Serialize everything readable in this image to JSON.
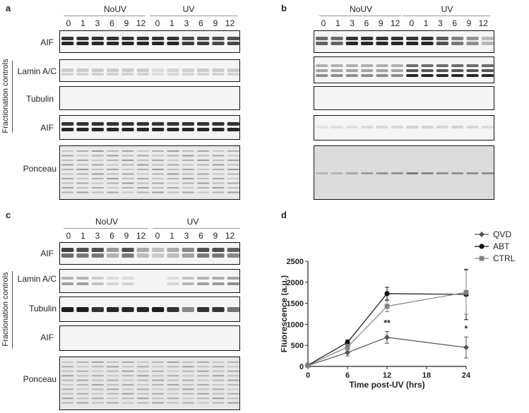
{
  "panels": {
    "a": {
      "label": "a",
      "group1": "NoUV",
      "group2": "UV",
      "lanes": [
        "0",
        "1",
        "3",
        "6",
        "9",
        "12",
        "0",
        "1",
        "3",
        "6",
        "9",
        "12"
      ],
      "rows": [
        "AIF",
        "Lamin A/C",
        "Tubulin",
        "AIF",
        "Ponceau"
      ]
    },
    "b": {
      "label": "b",
      "group1": "NoUV",
      "group2": "UV",
      "lanes": [
        "0",
        "1",
        "3",
        "6",
        "9",
        "12",
        "0",
        "1",
        "3",
        "6",
        "9",
        "12"
      ]
    },
    "c": {
      "label": "c",
      "group1": "NoUV",
      "group2": "UV",
      "lanes": [
        "0",
        "1",
        "3",
        "6",
        "9",
        "12",
        "0",
        "1",
        "3",
        "6",
        "9",
        "12"
      ],
      "rows": [
        "AIF",
        "Lamin A/C",
        "Tubulin",
        "AIF",
        "Ponceau"
      ]
    },
    "d": {
      "label": "d"
    }
  },
  "fractionation_label": "Fractionation controls",
  "chart_data": {
    "type": "line",
    "xlabel": "Time post-UV (hrs)",
    "ylabel": "Fluorescence (a.u.)",
    "xlim": [
      0,
      24
    ],
    "ylim": [
      0,
      2500
    ],
    "xticks": [
      "0",
      "6",
      "12",
      "18",
      "24"
    ],
    "yticks": [
      "0",
      "500",
      "1000",
      "1500",
      "2000",
      "2500"
    ],
    "x": [
      0,
      6,
      12,
      24
    ],
    "series": [
      {
        "name": "QVD",
        "values": [
          20,
          330,
          690,
          450
        ],
        "errors": [
          10,
          80,
          140,
          250
        ],
        "marker": "diamond",
        "color": "#555555"
      },
      {
        "name": "ABT",
        "values": [
          30,
          570,
          1730,
          1710
        ],
        "errors": [
          10,
          60,
          150,
          600
        ],
        "marker": "circle",
        "color": "#111111"
      },
      {
        "name": "CTRL",
        "values": [
          25,
          460,
          1430,
          1760
        ],
        "errors": [
          10,
          70,
          130,
          520
        ],
        "marker": "square",
        "color": "#808080"
      }
    ],
    "annotations": [
      {
        "x": 12,
        "text": "**"
      },
      {
        "x": 24,
        "text": "*"
      }
    ]
  }
}
